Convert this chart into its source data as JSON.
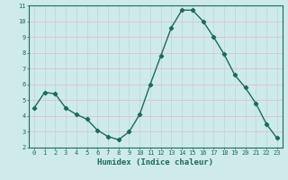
{
  "x": [
    0,
    1,
    2,
    3,
    4,
    5,
    6,
    7,
    8,
    9,
    10,
    11,
    12,
    13,
    14,
    15,
    16,
    17,
    18,
    19,
    20,
    21,
    22,
    23
  ],
  "y": [
    4.5,
    5.5,
    5.4,
    4.5,
    4.1,
    3.8,
    3.1,
    2.7,
    2.5,
    3.0,
    4.1,
    6.0,
    7.8,
    9.6,
    10.7,
    10.7,
    10.0,
    9.0,
    7.9,
    6.6,
    5.8,
    4.8,
    3.5,
    2.6
  ],
  "line_color": "#1a6b5a",
  "marker": "D",
  "marker_size": 2.2,
  "line_width": 1.0,
  "xlabel": "Humidex (Indice chaleur)",
  "xlabel_fontsize": 6.5,
  "xlabel_fontweight": "bold",
  "xlabel_color": "#1a6b5a",
  "background_color": "#ceeaea",
  "grid_color_h": "#e8b8b8",
  "grid_color_v": "#b8d8d8",
  "xlim": [
    -0.5,
    23.5
  ],
  "ylim": [
    2,
    11
  ],
  "yticks": [
    2,
    3,
    4,
    5,
    6,
    7,
    8,
    9,
    10,
    11
  ],
  "xticks": [
    0,
    1,
    2,
    3,
    4,
    5,
    6,
    7,
    8,
    9,
    10,
    11,
    12,
    13,
    14,
    15,
    16,
    17,
    18,
    19,
    20,
    21,
    22,
    23
  ],
  "tick_fontsize": 5.0,
  "tick_color": "#1a6b5a"
}
